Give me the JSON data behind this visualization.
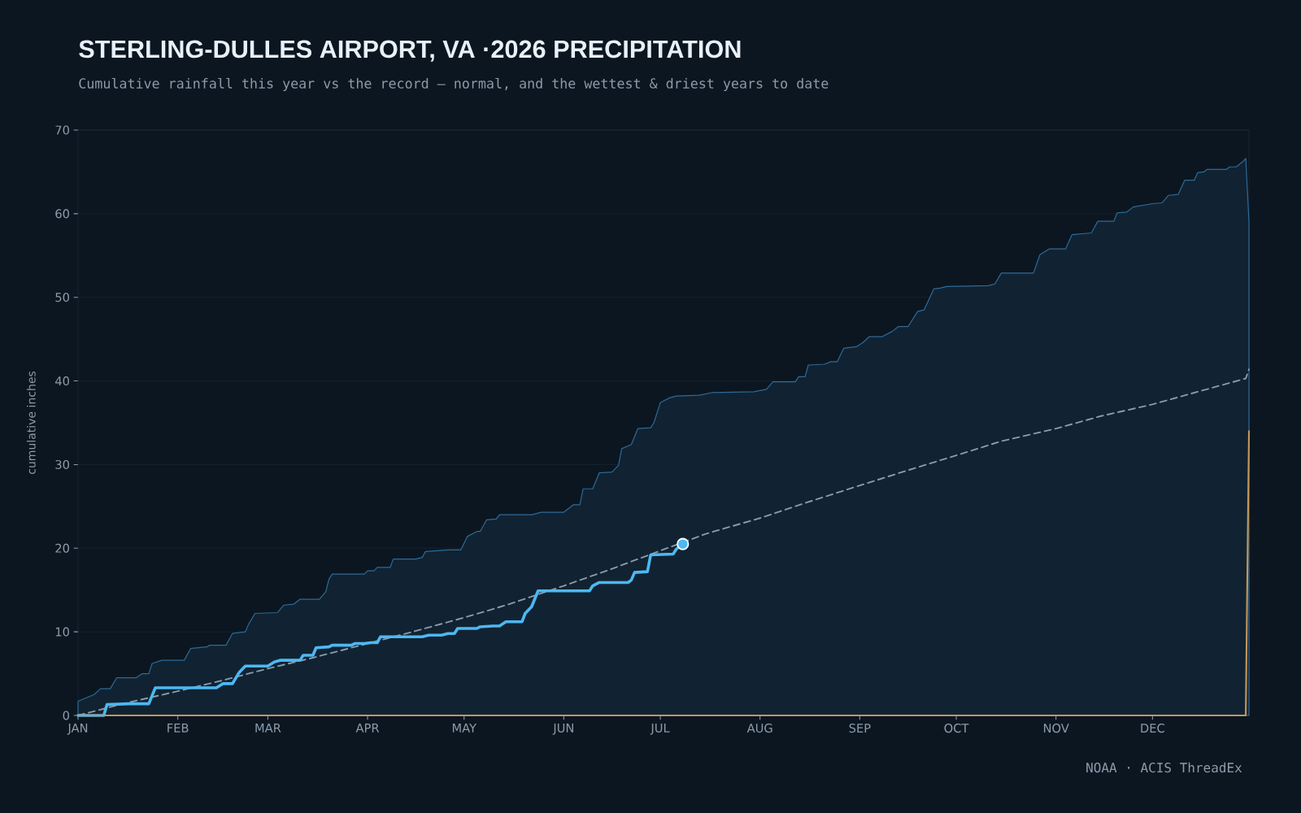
{
  "chart_data": {
    "type": "line",
    "title": "STERLING-DULLES AIRPORT, VA ·2026 PRECIPITATION",
    "subtitle": "Cumulative rainfall this year vs the record — normal, and the wettest & driest years to date",
    "ylabel": "cumulative inches",
    "annotations": [
      "NOAA · ACIS ThreadEx"
    ],
    "xlim": [
      "2026-01-01",
      "2026-12-31"
    ],
    "xticks": [
      {
        "value": "2026-01-01",
        "label": "JAN"
      },
      {
        "value": "2026-02-01",
        "label": "FEB"
      },
      {
        "value": "2026-03-01",
        "label": "MAR"
      },
      {
        "value": "2026-04-01",
        "label": "APR"
      },
      {
        "value": "2026-05-01",
        "label": "MAY"
      },
      {
        "value": "2026-06-01",
        "label": "JUN"
      },
      {
        "value": "2026-07-01",
        "label": "JUL"
      },
      {
        "value": "2026-08-01",
        "label": "AUG"
      },
      {
        "value": "2026-09-01",
        "label": "SEP"
      },
      {
        "value": "2026-10-01",
        "label": "OCT"
      },
      {
        "value": "2026-11-01",
        "label": "NOV"
      },
      {
        "value": "2026-12-01",
        "label": "DEC"
      }
    ],
    "ylim": [
      0,
      70
    ],
    "yticks": [
      0,
      10,
      20,
      30,
      40,
      50,
      60,
      70
    ],
    "grid": "y",
    "series": [
      {
        "type": "area",
        "color": "#2e6a99",
        "x": [
          "2026-01-01",
          "2026-01-06",
          "2026-01-08",
          "2026-01-11",
          "2026-01-13",
          "2026-01-19",
          "2026-01-21",
          "2026-01-23",
          "2026-01-24",
          "2026-01-27",
          "2026-02-03",
          "2026-02-05",
          "2026-02-10",
          "2026-02-11",
          "2026-02-16",
          "2026-02-18",
          "2026-02-22",
          "2026-02-23",
          "2026-02-25",
          "2026-03-04",
          "2026-03-06",
          "2026-03-09",
          "2026-03-11",
          "2026-03-17",
          "2026-03-19",
          "2026-03-20",
          "2026-03-21",
          "2026-03-31",
          "2026-04-01",
          "2026-04-03",
          "2026-04-04",
          "2026-04-08",
          "2026-04-09",
          "2026-04-16",
          "2026-04-18",
          "2026-04-19",
          "2026-04-26",
          "2026-04-30",
          "2026-05-02",
          "2026-05-05",
          "2026-05-06",
          "2026-05-08",
          "2026-05-11",
          "2026-05-12",
          "2026-05-22",
          "2026-05-25",
          "2026-06-01",
          "2026-06-04",
          "2026-06-06",
          "2026-06-07",
          "2026-06-10",
          "2026-06-12",
          "2026-06-16",
          "2026-06-18",
          "2026-06-19",
          "2026-06-22",
          "2026-06-24",
          "2026-06-28",
          "2026-06-29",
          "2026-07-01",
          "2026-07-04",
          "2026-07-06",
          "2026-07-13",
          "2026-07-17",
          "2026-07-30",
          "2026-08-03",
          "2026-08-05",
          "2026-08-12",
          "2026-08-13",
          "2026-08-15",
          "2026-08-16",
          "2026-08-21",
          "2026-08-23",
          "2026-08-25",
          "2026-08-27",
          "2026-08-31",
          "2026-09-02",
          "2026-09-04",
          "2026-09-08",
          "2026-09-11",
          "2026-09-13",
          "2026-09-16",
          "2026-09-19",
          "2026-09-21",
          "2026-09-24",
          "2026-09-26",
          "2026-09-28",
          "2026-10-11",
          "2026-10-13",
          "2026-10-15",
          "2026-10-25",
          "2026-10-27",
          "2026-10-30",
          "2026-11-04",
          "2026-11-06",
          "2026-11-12",
          "2026-11-14",
          "2026-11-19",
          "2026-11-20",
          "2026-11-23",
          "2026-11-25",
          "2026-12-01",
          "2026-12-04",
          "2026-12-06",
          "2026-12-09",
          "2026-12-11",
          "2026-12-14",
          "2026-12-15",
          "2026-12-17",
          "2026-12-18",
          "2026-12-24",
          "2026-12-25",
          "2026-12-27",
          "2026-12-29",
          "2026-12-30",
          "2026-12-31"
        ],
        "values": [
          1.7,
          2.5,
          3.2,
          3.2,
          4.5,
          4.5,
          5.0,
          5.0,
          6.2,
          6.6,
          6.6,
          8.0,
          8.2,
          8.4,
          8.4,
          9.8,
          10.0,
          10.9,
          12.2,
          12.3,
          13.2,
          13.3,
          13.9,
          13.9,
          14.8,
          16.3,
          16.9,
          16.9,
          17.3,
          17.3,
          17.7,
          17.7,
          18.7,
          18.7,
          18.9,
          19.6,
          19.8,
          19.8,
          21.4,
          22.0,
          22.0,
          23.4,
          23.5,
          24.0,
          24.0,
          24.3,
          24.3,
          25.2,
          25.2,
          27.1,
          27.1,
          29.0,
          29.1,
          29.9,
          31.9,
          32.4,
          34.3,
          34.4,
          35.0,
          37.4,
          38.0,
          38.2,
          38.3,
          38.6,
          38.7,
          39.0,
          39.9,
          39.9,
          40.5,
          40.5,
          41.9,
          42.0,
          42.3,
          42.3,
          43.9,
          44.1,
          44.6,
          45.3,
          45.3,
          45.9,
          46.5,
          46.5,
          48.3,
          48.5,
          51.0,
          51.1,
          51.3,
          51.4,
          51.6,
          52.9,
          52.9,
          55.1,
          55.8,
          55.8,
          57.5,
          57.7,
          59.1,
          59.1,
          60.1,
          60.2,
          60.8,
          61.2,
          61.3,
          62.2,
          62.3,
          64.0,
          64.0,
          64.9,
          65.0,
          65.3,
          65.3,
          65.6,
          65.6,
          66.2,
          66.6,
          59.0
        ]
      },
      {
        "line_style": "dashed",
        "color": "#8a9bab",
        "x": [
          "2026-01-01",
          "2026-01-15",
          "2026-02-01",
          "2026-02-15",
          "2026-03-01",
          "2026-03-15",
          "2026-04-01",
          "2026-04-15",
          "2026-05-01",
          "2026-05-15",
          "2026-06-01",
          "2026-06-15",
          "2026-07-01",
          "2026-07-15",
          "2026-08-01",
          "2026-08-15",
          "2026-09-01",
          "2026-09-15",
          "2026-10-01",
          "2026-10-15",
          "2026-11-01",
          "2026-11-15",
          "2026-12-01",
          "2026-12-15",
          "2026-12-30",
          "2026-12-31"
        ],
        "values": [
          0,
          1.4,
          2.9,
          4.2,
          5.6,
          6.9,
          8.6,
          10.0,
          11.7,
          13.3,
          15.5,
          17.4,
          19.7,
          21.7,
          23.6,
          25.4,
          27.5,
          29.2,
          31.1,
          32.8,
          34.3,
          35.8,
          37.2,
          38.7,
          40.3,
          41.4
        ]
      },
      {
        "line_style": "solid",
        "color": "#4db8f2",
        "x": [
          "2026-01-01",
          "2026-01-09",
          "2026-01-10",
          "2026-01-17",
          "2026-01-23",
          "2026-01-25",
          "2026-02-13",
          "2026-02-15",
          "2026-02-18",
          "2026-02-20",
          "2026-02-22",
          "2026-03-01",
          "2026-03-03",
          "2026-03-05",
          "2026-03-11",
          "2026-03-12",
          "2026-03-15",
          "2026-03-16",
          "2026-03-20",
          "2026-03-21",
          "2026-03-27",
          "2026-03-28",
          "2026-03-31",
          "2026-04-02",
          "2026-04-04",
          "2026-04-05",
          "2026-04-18",
          "2026-04-20",
          "2026-04-24",
          "2026-04-26",
          "2026-04-28",
          "2026-04-29",
          "2026-05-05",
          "2026-05-06",
          "2026-05-10",
          "2026-05-12",
          "2026-05-14",
          "2026-05-19",
          "2026-05-20",
          "2026-05-22",
          "2026-05-24",
          "2026-06-09",
          "2026-06-10",
          "2026-06-12",
          "2026-06-21",
          "2026-06-22",
          "2026-06-23",
          "2026-06-27",
          "2026-06-28",
          "2026-07-05",
          "2026-07-06",
          "2026-07-08"
        ],
        "values": [
          0,
          0,
          1.3,
          1.4,
          1.4,
          3.3,
          3.3,
          3.8,
          3.8,
          5.1,
          5.9,
          5.9,
          6.4,
          6.6,
          6.6,
          7.2,
          7.2,
          8.1,
          8.2,
          8.4,
          8.4,
          8.6,
          8.6,
          8.7,
          8.7,
          9.4,
          9.4,
          9.6,
          9.6,
          9.8,
          9.8,
          10.4,
          10.4,
          10.6,
          10.7,
          10.7,
          11.2,
          11.2,
          12.2,
          13.0,
          14.9,
          14.9,
          15.5,
          15.9,
          15.9,
          16.2,
          17.1,
          17.2,
          19.2,
          19.3,
          19.9,
          20.5
        ]
      },
      {
        "line_style": "solid",
        "color": "#c2975a",
        "x": [
          "2026-01-01",
          "2026-12-30",
          "2026-12-31"
        ],
        "values": [
          0,
          0,
          34
        ]
      },
      {
        "type": "scatter",
        "marker": "circle",
        "color": "#4db8f2",
        "x": [
          "2026-07-08"
        ],
        "values": [
          20.5
        ]
      }
    ]
  }
}
